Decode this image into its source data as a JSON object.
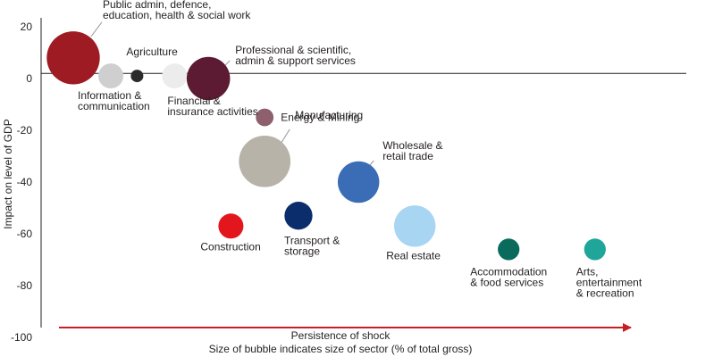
{
  "chart_data": {
    "type": "scatter",
    "title": "",
    "ylabel": "Impact on level of GDP",
    "xlabel": "Persistence of shock",
    "footnote": "Size of bubble indicates size of sector (% of total gross)",
    "ylim": [
      -100,
      20
    ],
    "yticks": [
      "20",
      "0",
      "-20",
      "-40",
      "-60",
      "-80",
      "-100"
    ],
    "ytick_values": [
      20,
      0,
      -20,
      -40,
      -60,
      -80,
      -100
    ],
    "reference_line_y": 2,
    "points": [
      {
        "label": "Public admin, defence,\neducation, health & social work",
        "persistence": 1.0,
        "impact": 8,
        "size": 18,
        "color": "#9e1b23"
      },
      {
        "label": "Information &\ncommunication",
        "persistence": 2.0,
        "impact": 1,
        "size": 4,
        "color": "#cfcfcf"
      },
      {
        "label": "Agriculture",
        "persistence": 2.7,
        "impact": 1,
        "size": 1,
        "color": "#2b2b2b"
      },
      {
        "label": "Financial &\ninsurance activities",
        "persistence": 3.7,
        "impact": 1,
        "size": 4,
        "color": "#ececec"
      },
      {
        "label": "Professional & scientific,\nadmin & support services",
        "persistence": 4.6,
        "impact": 0,
        "size": 12,
        "color": "#5c1a33"
      },
      {
        "label": "Energy & Mining",
        "persistence": 6.1,
        "impact": -15,
        "size": 2,
        "color": "#8e5f6c"
      },
      {
        "label": "Manufacturing",
        "persistence": 6.1,
        "impact": -32,
        "size": 17,
        "color": "#b8b3a8"
      },
      {
        "label": "Wholesale &\nretail trade",
        "persistence": 8.6,
        "impact": -40,
        "size": 11,
        "color": "#3a6db5"
      },
      {
        "label": "Construction",
        "persistence": 5.2,
        "impact": -57,
        "size": 4,
        "color": "#e3151d"
      },
      {
        "label": "Transport &\nstorage",
        "persistence": 7.0,
        "impact": -53,
        "size": 5,
        "color": "#0c2d6b"
      },
      {
        "label": "Real estate",
        "persistence": 10.1,
        "impact": -57,
        "size": 11,
        "color": "#a8d5f2"
      },
      {
        "label": "Accommodation\n& food services",
        "persistence": 12.6,
        "impact": -66,
        "size": 3,
        "color": "#0a6b5c"
      },
      {
        "label": "Arts,\nentertainment\n& recreation",
        "persistence": 14.9,
        "impact": -66,
        "size": 3,
        "color": "#1fa59a"
      }
    ]
  }
}
